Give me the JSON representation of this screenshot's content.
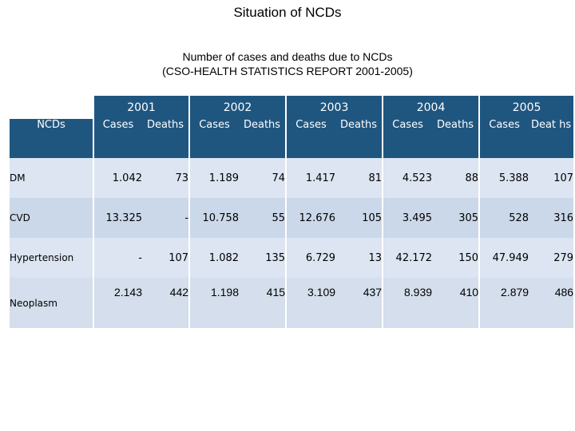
{
  "title": "Situation of NCDs",
  "subtitle": {
    "line1": "Number of cases and deaths due to NCDs",
    "line2": "(CSO-HEALTH STATISTICS REPORT 2001-2005)"
  },
  "table": {
    "row_header": "NCDs",
    "years": [
      "2001",
      "2002",
      "2003",
      "2004",
      "2005"
    ],
    "sub_headers": [
      "Cases",
      "Deaths",
      "Cases",
      "Deaths",
      "Cases",
      "Deaths",
      "Cases",
      "Deaths",
      "Cases",
      "Deat hs"
    ],
    "rows": [
      {
        "name": "DM",
        "values": [
          "1.042",
          "73",
          "1.189",
          "74",
          "1.417",
          "81",
          "4.523",
          "88",
          "5.388",
          "107"
        ]
      },
      {
        "name": "CVD",
        "values": [
          "13.325",
          "-",
          "10.758",
          "55",
          "12.676",
          "105",
          "3.495",
          "305",
          "528",
          "316"
        ]
      },
      {
        "name": "Hypertension",
        "values": [
          "-",
          "107",
          "1.082",
          "135",
          "6.729",
          "13",
          "42.172",
          "150",
          "47.949",
          "279"
        ]
      },
      {
        "name": "Neoplasm",
        "values": [
          "2.143",
          "442",
          "1.198",
          "415",
          "3.109",
          "437",
          "8.939",
          "410",
          "2.879",
          "486"
        ]
      }
    ]
  },
  "colors": {
    "header_dark": "#1f5680",
    "header_light": "#3c6f99",
    "cell_light": "#dde6f1",
    "cell_mid": "#c9d6e8"
  }
}
